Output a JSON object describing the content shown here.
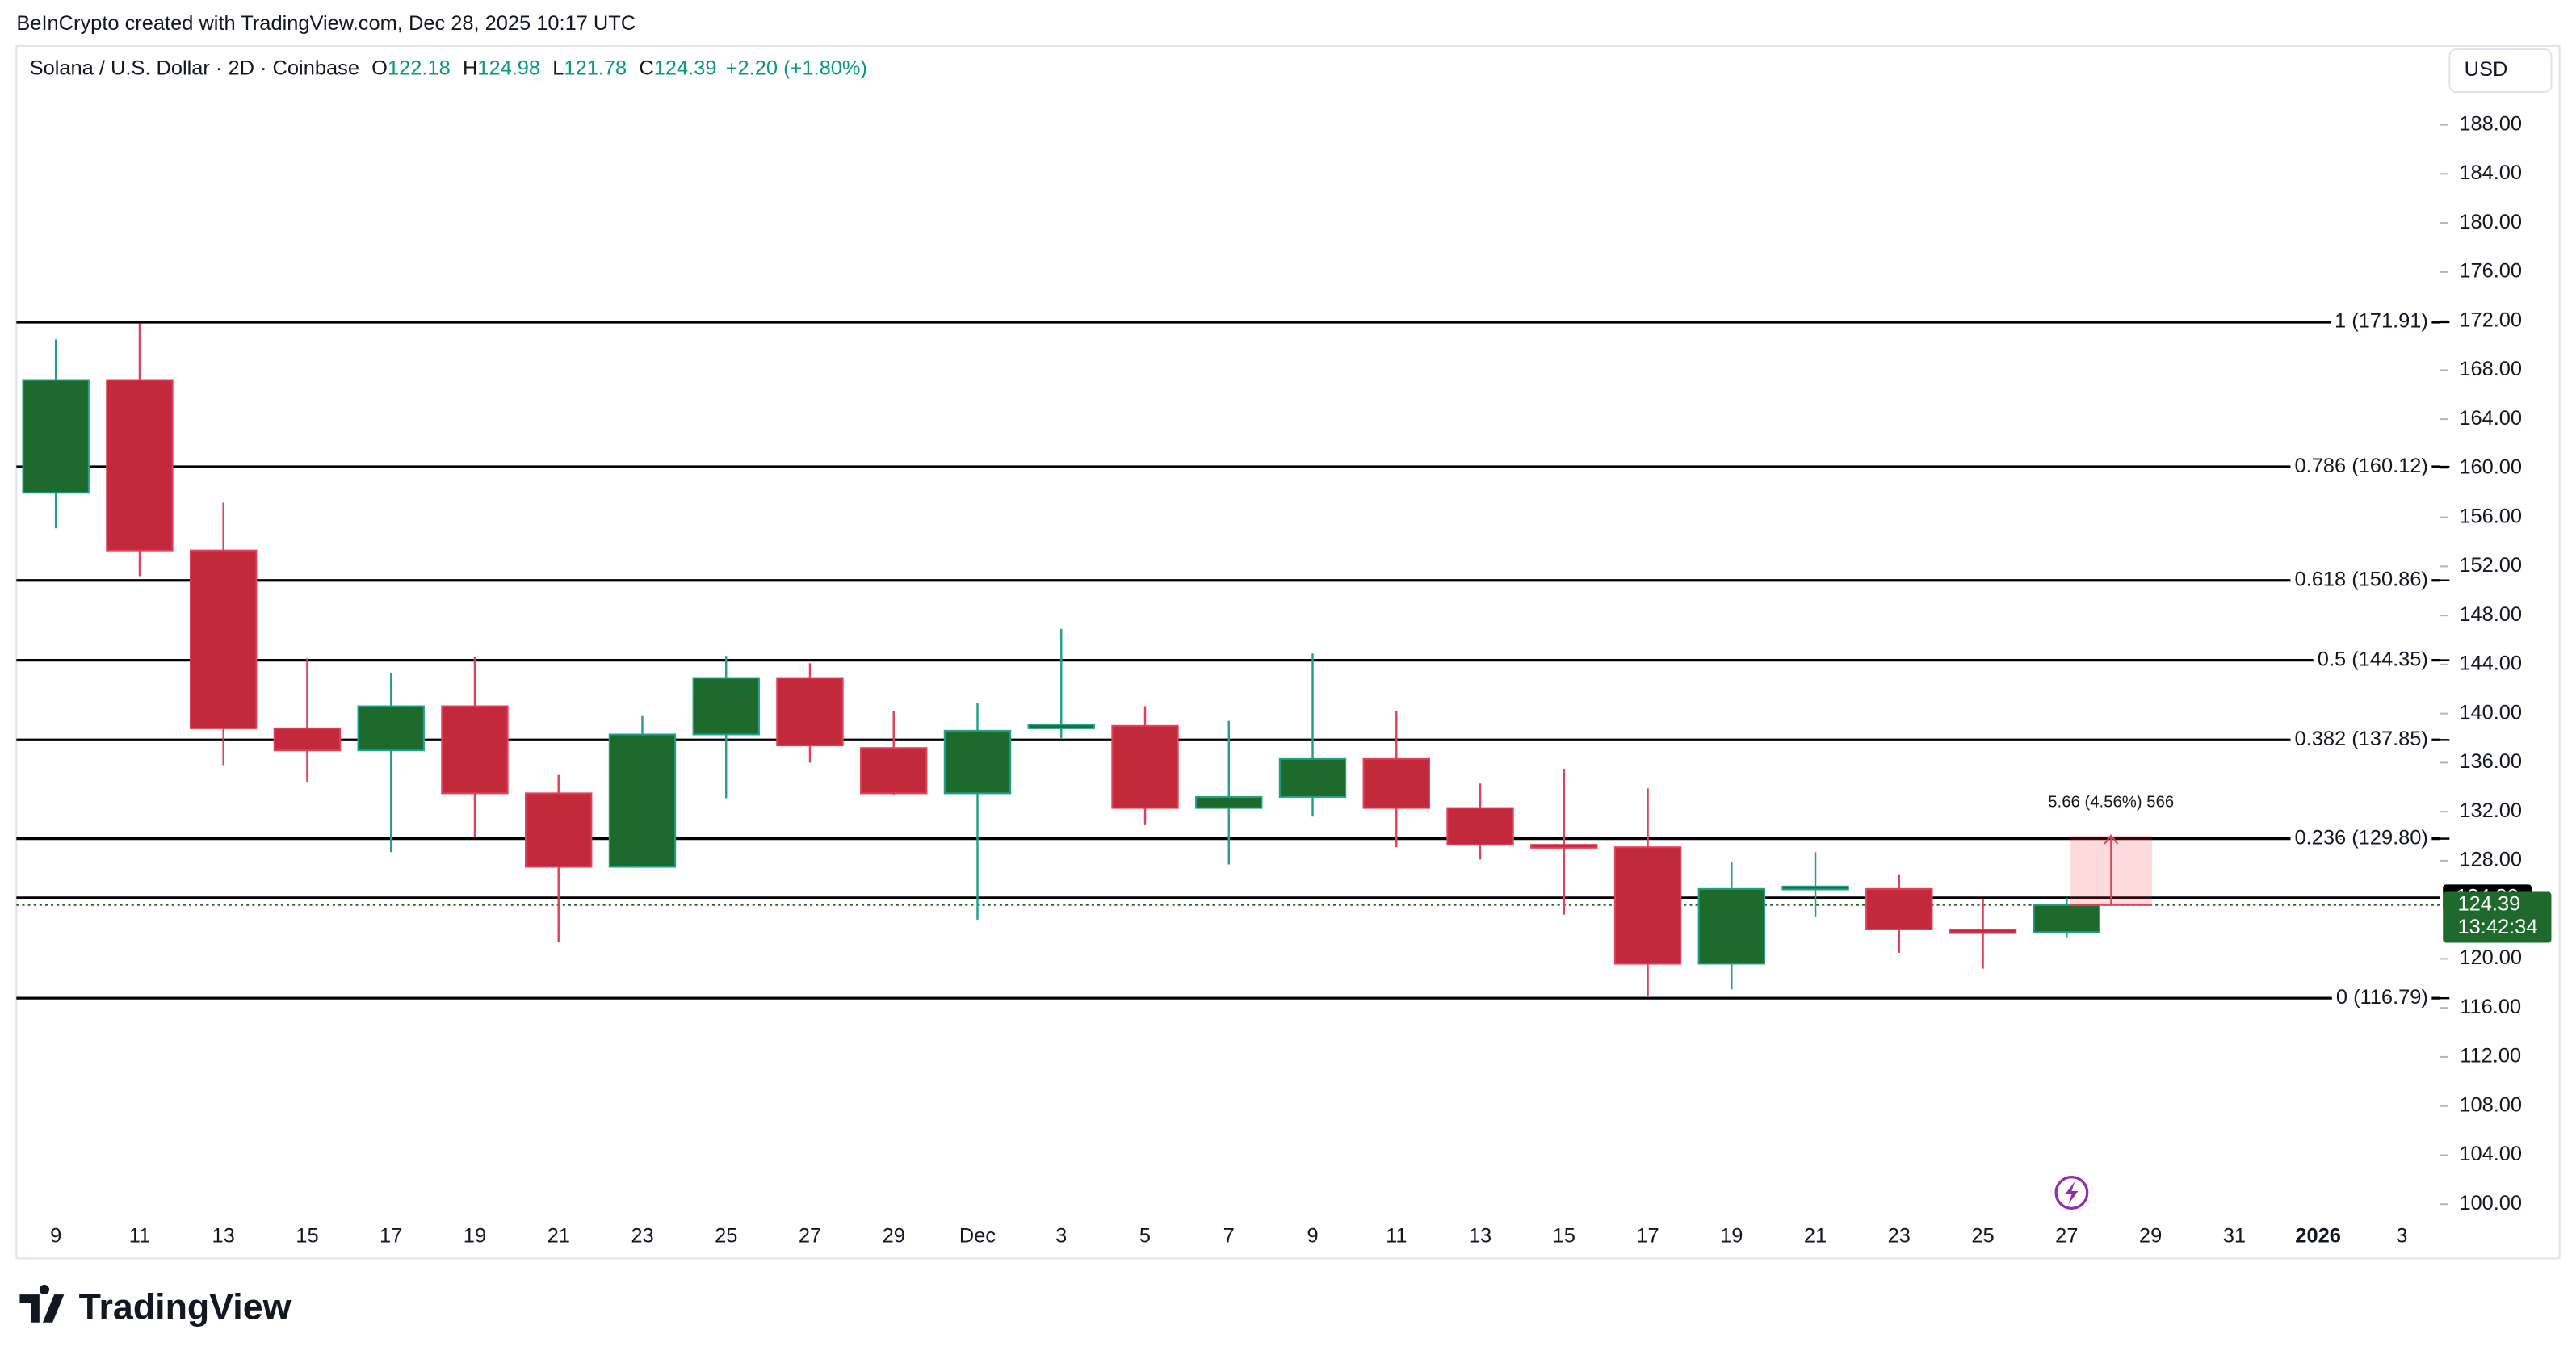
{
  "watermark": "BeInCrypto created with TradingView.com, Dec 28, 2025 10:17 UTC",
  "logo": "TradingView",
  "chart_data": {
    "type": "candlestick",
    "title": "Solana / U.S. Dollar · 2D · Coinbase",
    "ohlc_labels": [
      "O",
      "H",
      "L",
      "C"
    ],
    "change": "+2.20 (+1.80%)",
    "currency": "USD",
    "categories": [
      "9",
      "11",
      "13",
      "15",
      "17",
      "19",
      "21",
      "23",
      "25",
      "27",
      "29",
      "Dec",
      "3",
      "5",
      "7",
      "9",
      "11",
      "13",
      "15",
      "17",
      "19",
      "21",
      "23",
      "25",
      "27",
      "29",
      "31",
      "2026",
      "3"
    ],
    "open": [
      158.0,
      167.2,
      153.3,
      138.8,
      137.0,
      140.6,
      133.5,
      127.5,
      138.3,
      142.9,
      137.2,
      133.5,
      138.8,
      139.0,
      132.3,
      133.2,
      136.3,
      132.3,
      129.3,
      129.1,
      119.6,
      125.7,
      125.7,
      122.4,
      122.18,
      null,
      null,
      null,
      null
    ],
    "high": [
      170.5,
      171.8,
      157.2,
      144.5,
      143.3,
      144.6,
      135.0,
      139.8,
      144.7,
      144.1,
      140.2,
      140.9,
      146.9,
      140.6,
      139.4,
      144.9,
      140.2,
      134.3,
      135.5,
      133.9,
      127.9,
      128.7,
      126.9,
      124.9,
      124.98,
      null,
      null,
      null,
      null
    ],
    "low": [
      155.1,
      151.2,
      135.8,
      134.4,
      128.7,
      129.9,
      121.4,
      127.5,
      133.1,
      136.0,
      133.4,
      123.2,
      138.0,
      130.9,
      127.7,
      131.6,
      129.1,
      128.1,
      123.6,
      117.0,
      117.5,
      123.4,
      120.5,
      119.2,
      121.78,
      null,
      null,
      null,
      null
    ],
    "close": [
      167.2,
      153.3,
      138.8,
      137.0,
      140.6,
      133.5,
      127.5,
      138.3,
      142.9,
      137.4,
      133.5,
      138.6,
      139.1,
      132.3,
      133.2,
      136.3,
      132.3,
      129.3,
      129.1,
      119.6,
      125.7,
      125.9,
      122.4,
      122.1,
      124.39,
      null,
      null,
      null,
      null
    ],
    "up_color": "#1e6a2c",
    "up_wick_color": "#22a08a",
    "down_color": "#c2293b",
    "down_wick_color": "#e0405a",
    "change_color": "#089981",
    "ylim": [
      98.39,
      194.16
    ],
    "yticks": [
      {
        "value": 100,
        "label": "100.00"
      },
      {
        "value": 104,
        "label": "104.00"
      },
      {
        "value": 108,
        "label": "108.00"
      },
      {
        "value": 112,
        "label": "112.00"
      },
      {
        "value": 116,
        "label": "116.00"
      },
      {
        "value": 120,
        "label": "120.00"
      },
      {
        "value": 128,
        "label": "128.00"
      },
      {
        "value": 132,
        "label": "132.00"
      },
      {
        "value": 136,
        "label": "136.00"
      },
      {
        "value": 140,
        "label": "140.00"
      },
      {
        "value": 144,
        "label": "144.00"
      },
      {
        "value": 148,
        "label": "148.00"
      },
      {
        "value": 152,
        "label": "152.00"
      },
      {
        "value": 156,
        "label": "156.00"
      },
      {
        "value": 160,
        "label": "160.00"
      },
      {
        "value": 164,
        "label": "164.00"
      },
      {
        "value": 168,
        "label": "168.00"
      },
      {
        "value": 172,
        "label": "172.00"
      },
      {
        "value": 176,
        "label": "176.00"
      },
      {
        "value": 180,
        "label": "180.00"
      },
      {
        "value": 184,
        "label": "184.00"
      },
      {
        "value": 188,
        "label": "188.00"
      }
    ],
    "levels": [
      {
        "label": "1 (171.91)",
        "value": 171.91
      },
      {
        "label": "0.786 (160.12)",
        "value": 160.12
      },
      {
        "label": "0.618 (150.86)",
        "value": 150.86
      },
      {
        "label": "0.5 (144.35)",
        "value": 144.35
      },
      {
        "label": "0.382 (137.85)",
        "value": 137.85
      },
      {
        "label": "0.236 (129.80)",
        "value": 129.8
      },
      {
        "label": "0 (116.79)",
        "value": 116.79
      }
    ],
    "high_line": 124.99,
    "countdown": "13:42:34",
    "measure": {
      "label": "5.66 (4.56%) 566",
      "from": 124.39,
      "to": 130.05
    }
  }
}
